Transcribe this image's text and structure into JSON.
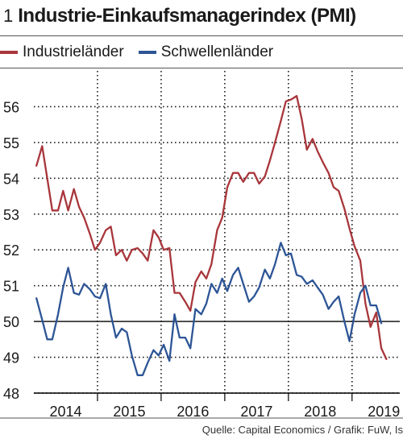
{
  "header": {
    "figure_number": "1",
    "title": "Industrie-Einkaufsmanagerindex (PMI)"
  },
  "colors": {
    "industrielaender": "#a8363b",
    "schwellenlaender": "#2d5596",
    "reference_line": "#000000",
    "grid": "#222222"
  },
  "footer": {
    "source": "Quelle: Capital Economics / Grafik: FuW, Is"
  },
  "chart_data": {
    "type": "line",
    "title": "Industrie-Einkaufsmanagerindex (PMI)",
    "xlabel": "",
    "ylabel": "",
    "ylim": [
      48,
      57
    ],
    "y_ticks": [
      48,
      49,
      50,
      51,
      52,
      53,
      54,
      55,
      56
    ],
    "x_range": [
      2013.5,
      2019.25
    ],
    "x_ticks": [
      {
        "label": "2014",
        "value": 2014
      },
      {
        "label": "2015",
        "value": 2015
      },
      {
        "label": "2016",
        "value": 2016
      },
      {
        "label": "2017",
        "value": 2017
      },
      {
        "label": "2018",
        "value": 2018
      },
      {
        "label": "2019",
        "value": 2019
      }
    ],
    "x_grid": [
      2014.5,
      2015.5,
      2016.5,
      2017.5,
      2018.5
    ],
    "reference_line": 50,
    "legend_position": "top",
    "series": [
      {
        "name": "Industrieländer",
        "color_key": "industrielaender",
        "points": [
          [
            2013.54,
            54.35
          ],
          [
            2013.63,
            54.9
          ],
          [
            2013.71,
            54.0
          ],
          [
            2013.79,
            53.1
          ],
          [
            2013.88,
            53.1
          ],
          [
            2013.96,
            53.65
          ],
          [
            2014.04,
            53.1
          ],
          [
            2014.13,
            53.7
          ],
          [
            2014.21,
            53.2
          ],
          [
            2014.29,
            52.9
          ],
          [
            2014.38,
            52.45
          ],
          [
            2014.46,
            52.0
          ],
          [
            2014.54,
            52.2
          ],
          [
            2014.63,
            52.55
          ],
          [
            2014.71,
            52.65
          ],
          [
            2014.79,
            51.85
          ],
          [
            2014.88,
            52.0
          ],
          [
            2014.96,
            51.7
          ],
          [
            2015.04,
            52.0
          ],
          [
            2015.13,
            52.05
          ],
          [
            2015.21,
            51.9
          ],
          [
            2015.29,
            51.7
          ],
          [
            2015.38,
            52.55
          ],
          [
            2015.46,
            52.35
          ],
          [
            2015.54,
            52.0
          ],
          [
            2015.63,
            52.05
          ],
          [
            2015.71,
            50.8
          ],
          [
            2015.79,
            50.8
          ],
          [
            2015.88,
            50.55
          ],
          [
            2015.96,
            50.3
          ],
          [
            2016.04,
            51.1
          ],
          [
            2016.13,
            51.4
          ],
          [
            2016.21,
            51.2
          ],
          [
            2016.29,
            51.6
          ],
          [
            2016.38,
            52.55
          ],
          [
            2016.46,
            52.9
          ],
          [
            2016.54,
            53.75
          ],
          [
            2016.63,
            54.15
          ],
          [
            2016.71,
            54.15
          ],
          [
            2016.79,
            53.9
          ],
          [
            2016.88,
            54.15
          ],
          [
            2016.96,
            54.15
          ],
          [
            2017.04,
            53.85
          ],
          [
            2017.13,
            54.05
          ],
          [
            2017.21,
            54.5
          ],
          [
            2017.29,
            55.0
          ],
          [
            2017.38,
            55.6
          ],
          [
            2017.46,
            56.15
          ],
          [
            2017.54,
            56.2
          ],
          [
            2017.63,
            56.3
          ],
          [
            2017.71,
            55.65
          ],
          [
            2017.79,
            54.8
          ],
          [
            2017.88,
            55.1
          ],
          [
            2017.96,
            54.75
          ],
          [
            2018.04,
            54.45
          ],
          [
            2018.13,
            54.15
          ],
          [
            2018.21,
            53.75
          ],
          [
            2018.29,
            53.65
          ],
          [
            2018.38,
            53.15
          ],
          [
            2018.46,
            52.6
          ],
          [
            2018.54,
            52.1
          ],
          [
            2018.63,
            51.7
          ],
          [
            2018.71,
            50.5
          ],
          [
            2018.79,
            49.85
          ],
          [
            2018.88,
            50.25
          ],
          [
            2018.96,
            49.25
          ],
          [
            2019.04,
            48.95
          ]
        ]
      },
      {
        "name": "Schwellenländer",
        "color_key": "schwellenlaender",
        "points": [
          [
            2013.54,
            50.65
          ],
          [
            2013.63,
            50.05
          ],
          [
            2013.71,
            49.5
          ],
          [
            2013.79,
            49.5
          ],
          [
            2013.88,
            50.2
          ],
          [
            2013.96,
            50.95
          ],
          [
            2014.04,
            51.5
          ],
          [
            2014.13,
            50.8
          ],
          [
            2014.21,
            50.75
          ],
          [
            2014.29,
            51.05
          ],
          [
            2014.38,
            50.9
          ],
          [
            2014.46,
            50.7
          ],
          [
            2014.54,
            50.65
          ],
          [
            2014.63,
            51.05
          ],
          [
            2014.71,
            50.2
          ],
          [
            2014.79,
            49.55
          ],
          [
            2014.88,
            49.8
          ],
          [
            2014.96,
            49.7
          ],
          [
            2015.04,
            49.05
          ],
          [
            2015.13,
            48.5
          ],
          [
            2015.21,
            48.5
          ],
          [
            2015.29,
            48.85
          ],
          [
            2015.38,
            49.2
          ],
          [
            2015.46,
            49.05
          ],
          [
            2015.54,
            49.35
          ],
          [
            2015.63,
            48.9
          ],
          [
            2015.71,
            50.2
          ],
          [
            2015.79,
            49.55
          ],
          [
            2015.88,
            49.55
          ],
          [
            2015.96,
            49.25
          ],
          [
            2016.04,
            50.35
          ],
          [
            2016.13,
            50.2
          ],
          [
            2016.21,
            50.5
          ],
          [
            2016.29,
            51.05
          ],
          [
            2016.38,
            50.8
          ],
          [
            2016.46,
            51.2
          ],
          [
            2016.54,
            50.85
          ],
          [
            2016.63,
            51.3
          ],
          [
            2016.71,
            51.5
          ],
          [
            2016.79,
            51.05
          ],
          [
            2016.88,
            50.55
          ],
          [
            2016.96,
            50.7
          ],
          [
            2017.04,
            50.95
          ],
          [
            2017.13,
            51.45
          ],
          [
            2017.21,
            51.2
          ],
          [
            2017.29,
            51.6
          ],
          [
            2017.38,
            52.2
          ],
          [
            2017.46,
            51.85
          ],
          [
            2017.54,
            51.9
          ],
          [
            2017.63,
            51.3
          ],
          [
            2017.71,
            51.25
          ],
          [
            2017.79,
            51.05
          ],
          [
            2017.88,
            51.15
          ],
          [
            2017.96,
            50.95
          ],
          [
            2018.04,
            50.75
          ],
          [
            2018.13,
            50.35
          ],
          [
            2018.21,
            50.55
          ],
          [
            2018.29,
            50.7
          ],
          [
            2018.38,
            50.0
          ],
          [
            2018.46,
            49.45
          ],
          [
            2018.54,
            50.2
          ],
          [
            2018.63,
            50.8
          ],
          [
            2018.71,
            51.0
          ],
          [
            2018.79,
            50.45
          ],
          [
            2018.88,
            50.45
          ],
          [
            2018.96,
            49.95
          ]
        ]
      }
    ]
  }
}
